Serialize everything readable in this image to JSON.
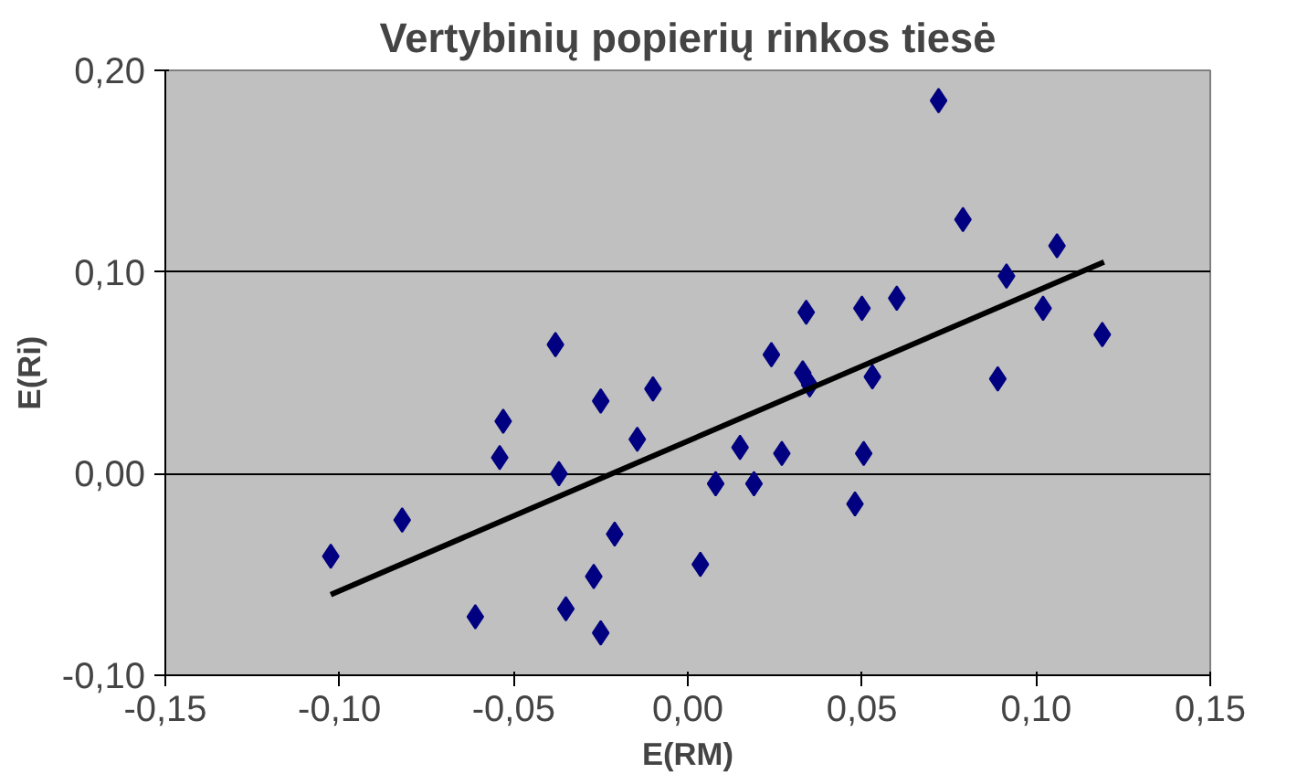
{
  "chart_data": {
    "type": "scatter",
    "title": "Vertybinių popierių rinkos tiesė",
    "xlabel": "E(RM)",
    "ylabel": "E(Ri)",
    "xlim": [
      -0.15,
      0.15
    ],
    "xticks": [
      {
        "value": -0.15,
        "label": "-0,15"
      },
      {
        "value": -0.1,
        "label": "-0,10"
      },
      {
        "value": -0.05,
        "label": "-0,05"
      },
      {
        "value": 0,
        "label": "0,00"
      },
      {
        "value": 0.05,
        "label": "0,05"
      },
      {
        "value": 0.1,
        "label": "0,10"
      },
      {
        "value": 0.15,
        "label": "0,15"
      }
    ],
    "ylim": [
      -0.1,
      0.2
    ],
    "yticks": [
      {
        "value": -0.1,
        "label": "-0,10"
      },
      {
        "value": 0,
        "label": "0,00"
      },
      {
        "value": 0.1,
        "label": "0,10"
      },
      {
        "value": 0.2,
        "label": "0,20"
      }
    ],
    "grid": "y",
    "series": [
      {
        "marker": "diamond",
        "color": "#000080",
        "x": [
          -0.1025,
          -0.082,
          -0.053,
          -0.054,
          -0.061,
          -0.038,
          -0.037,
          -0.035,
          -0.025,
          -0.021,
          -0.027,
          -0.025,
          -0.0145,
          -0.01,
          0.0036,
          0.008,
          0.015,
          0.019,
          0.024,
          0.027,
          0.034,
          0.033,
          0.035,
          0.048,
          0.05,
          0.0505,
          0.053,
          0.06,
          0.072,
          0.079,
          0.0915,
          0.089,
          0.102,
          0.106,
          0.119
        ],
        "values": [
          -0.041,
          -0.023,
          0.026,
          0.008,
          -0.071,
          0.064,
          0.0,
          -0.067,
          0.036,
          -0.03,
          -0.051,
          -0.079,
          0.017,
          0.042,
          -0.045,
          -0.005,
          0.013,
          -0.005,
          0.059,
          0.01,
          0.08,
          0.05,
          0.044,
          -0.015,
          0.082,
          0.01,
          0.048,
          0.087,
          0.185,
          0.126,
          0.098,
          0.047,
          0.082,
          0.113,
          0.069
        ]
      },
      {
        "type": "line",
        "marker": "none",
        "color": "#000000",
        "x": [
          -0.1025,
          0.1195
        ],
        "values": [
          -0.06,
          0.105
        ]
      }
    ]
  }
}
